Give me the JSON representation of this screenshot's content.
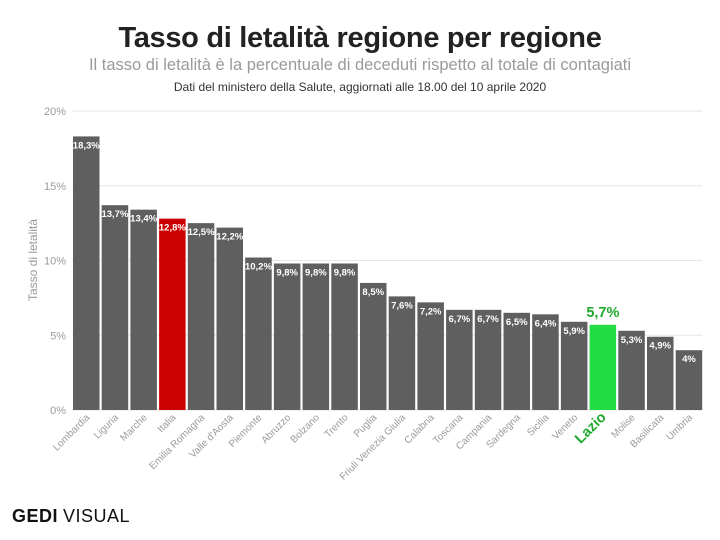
{
  "header": {
    "title": "Tasso di letalità regione per regione",
    "subtitle": "Il tasso di letalità è la percentuale di deceduti rispetto al totale di contagiati",
    "source": "Dati del ministero della Salute, aggiornati alle 18.00 del 10 aprile 2020"
  },
  "brand": {
    "bold": "GEDI",
    "light": "VISUAL"
  },
  "colors": {
    "default_bar": "#5f5f5f",
    "italia_bar": "#cc0000",
    "lazio_bar": "#22dd44",
    "lazio_text": "#1faa2e",
    "gridline": "#e6e6e6",
    "axis_text": "#9a9a9a"
  },
  "chart_data": {
    "type": "bar",
    "ylabel": "Tasso di letalità",
    "ylim": [
      0,
      20
    ],
    "yticks": [
      0,
      5,
      10,
      15,
      20
    ],
    "ytick_labels": [
      "0%",
      "5%",
      "10%",
      "15%",
      "20%"
    ],
    "grid": true,
    "categories": [
      "Lombardia",
      "Liguria",
      "Marche",
      "Italia",
      "Emilia Romagna",
      "Valle d'Aosta",
      "Piemonte",
      "Abruzzo",
      "Bolzano",
      "Trento",
      "Puglia",
      "Friuli Venezia Giulia",
      "Calabria",
      "Toscana",
      "Campania",
      "Sardegna",
      "Sicilia",
      "Veneto",
      "Lazio",
      "Molise",
      "Basilicata",
      "Umbria"
    ],
    "values": [
      18.3,
      13.7,
      13.4,
      12.8,
      12.5,
      12.2,
      10.2,
      9.8,
      9.8,
      9.8,
      8.5,
      7.6,
      7.2,
      6.7,
      6.7,
      6.5,
      6.4,
      5.9,
      5.7,
      5.3,
      4.9,
      4.0
    ],
    "data_labels": [
      "18,3%",
      "13,7%",
      "13,4%",
      "12,8%",
      "12,5%",
      "12,2%",
      "10,2%",
      "9,8%",
      "9,8%",
      "9,8%",
      "8,5%",
      "7,6%",
      "7,2%",
      "6,7%",
      "6,7%",
      "6,5%",
      "6,4%",
      "5,9%",
      "5,7%",
      "5,3%",
      "4,9%",
      "4%"
    ],
    "highlights": {
      "Italia": "italia",
      "Lazio": "lazio"
    }
  }
}
